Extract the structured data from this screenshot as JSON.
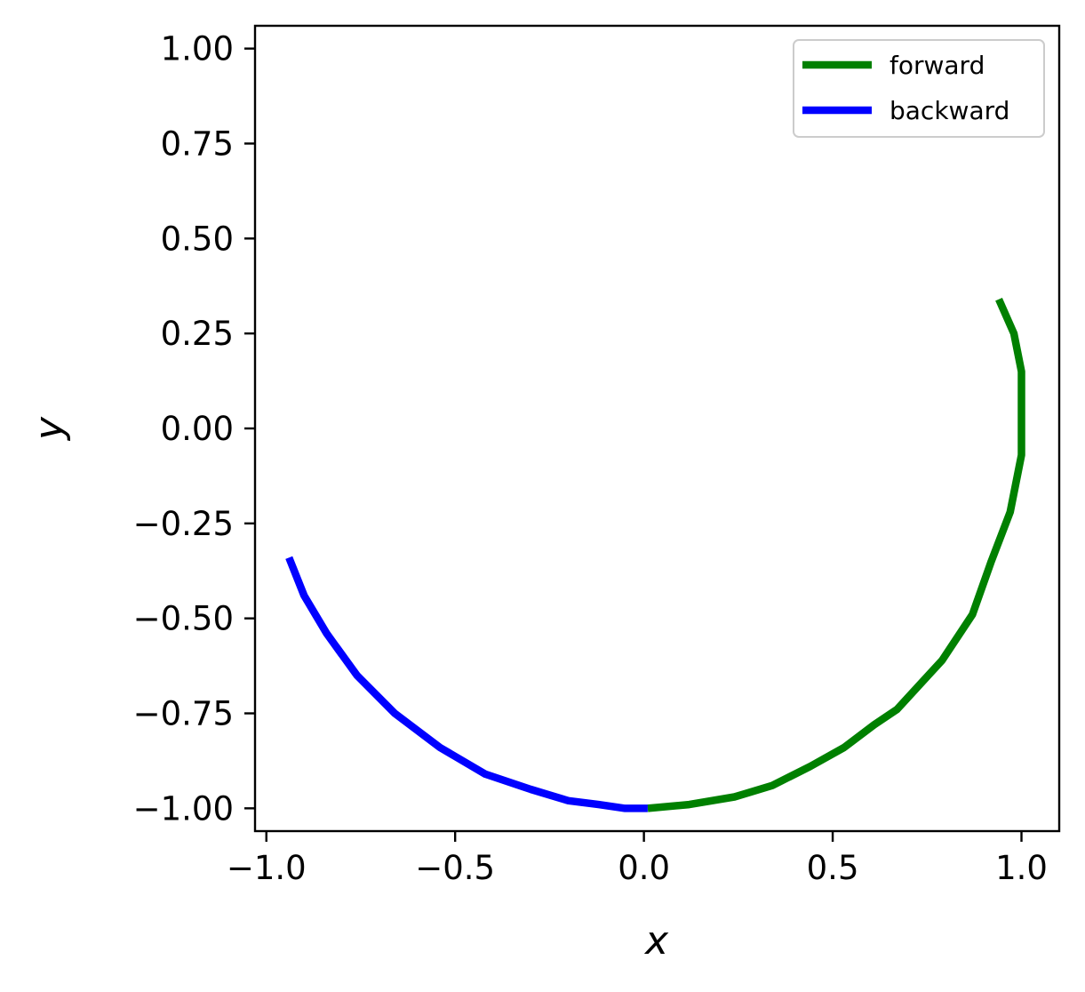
{
  "chart_data": {
    "type": "line",
    "xlabel": "x",
    "ylabel": "y",
    "xlim": [
      -1.03,
      1.1
    ],
    "ylim": [
      -1.06,
      1.06
    ],
    "xticks": [
      -1.0,
      -0.5,
      0.0,
      0.5,
      1.0
    ],
    "xtick_labels": [
      "−1.0",
      "−0.5",
      "0.0",
      "0.5",
      "1.0"
    ],
    "yticks": [
      1.0,
      0.75,
      0.5,
      0.25,
      0.0,
      -0.25,
      -0.5,
      -0.75,
      -1.0
    ],
    "ytick_labels": [
      "1.00",
      "0.75",
      "0.50",
      "0.25",
      "0.00",
      "−0.25",
      "−0.50",
      "−0.75",
      "−1.00"
    ],
    "grid": false,
    "legend_position": "top-right",
    "series": [
      {
        "name": "forward",
        "color": "#008000",
        "x": [
          0.01,
          0.12,
          0.24,
          0.34,
          0.44,
          0.53,
          0.61,
          0.67,
          0.79,
          0.87,
          0.92,
          0.97,
          1.0,
          1.0,
          1.0,
          0.98,
          0.94
        ],
        "y": [
          -1.0,
          -0.99,
          -0.97,
          -0.94,
          -0.89,
          -0.84,
          -0.78,
          -0.74,
          -0.61,
          -0.49,
          -0.35,
          -0.22,
          -0.07,
          0.05,
          0.15,
          0.25,
          0.34
        ]
      },
      {
        "name": "backward",
        "color": "#0000ff",
        "x": [
          0.01,
          -0.05,
          -0.12,
          -0.2,
          -0.3,
          -0.42,
          -0.54,
          -0.66,
          -0.76,
          -0.84,
          -0.9,
          -0.94
        ],
        "y": [
          -1.0,
          -1.0,
          -0.99,
          -0.98,
          -0.95,
          -0.91,
          -0.84,
          -0.75,
          -0.65,
          -0.54,
          -0.44,
          -0.34
        ]
      }
    ]
  }
}
